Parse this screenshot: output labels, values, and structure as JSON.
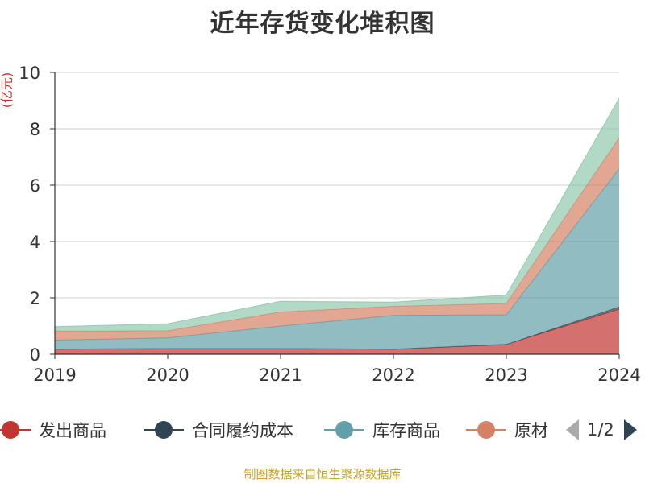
{
  "chart_data": {
    "type": "area",
    "stacked": true,
    "title": "近年存货变化堆积图",
    "ylabel": "(亿元)",
    "xlabel": "",
    "categories": [
      "2019",
      "2020",
      "2021",
      "2022",
      "2023",
      "2024"
    ],
    "ylim": [
      0,
      10
    ],
    "yticks": [
      0,
      2,
      4,
      6,
      8,
      10
    ],
    "grid": true,
    "legend_position": "bottom",
    "series": [
      {
        "name": "发出商品",
        "color": "#c23531",
        "values": [
          0.18,
          0.2,
          0.2,
          0.18,
          0.35,
          1.6
        ]
      },
      {
        "name": "合同履约成本",
        "color": "#2f4554",
        "values": [
          0.0,
          0.0,
          0.0,
          0.0,
          0.0,
          0.08
        ]
      },
      {
        "name": "库存商品",
        "color": "#61a0a8",
        "values": [
          0.32,
          0.38,
          0.8,
          1.2,
          1.05,
          4.9
        ]
      },
      {
        "name": "原材料",
        "color": "#d48265",
        "values": [
          0.32,
          0.25,
          0.5,
          0.32,
          0.4,
          1.1
        ]
      },
      {
        "name": "",
        "color": "#91c7ae",
        "values": [
          0.16,
          0.25,
          0.38,
          0.15,
          0.3,
          1.4
        ]
      }
    ]
  },
  "legend": {
    "items": [
      "发出商品",
      "合同履约成本",
      "库存商品",
      "原材"
    ],
    "page": "1/2"
  },
  "colors": {
    "axis": "#333333",
    "grid": "#cccccc",
    "ylabel": "#c23531",
    "footer": "#c8a02a",
    "pager_disabled": "#aaaaaa",
    "pager_active": "#2f4554"
  },
  "footer": "制图数据来自恒生聚源数据库"
}
